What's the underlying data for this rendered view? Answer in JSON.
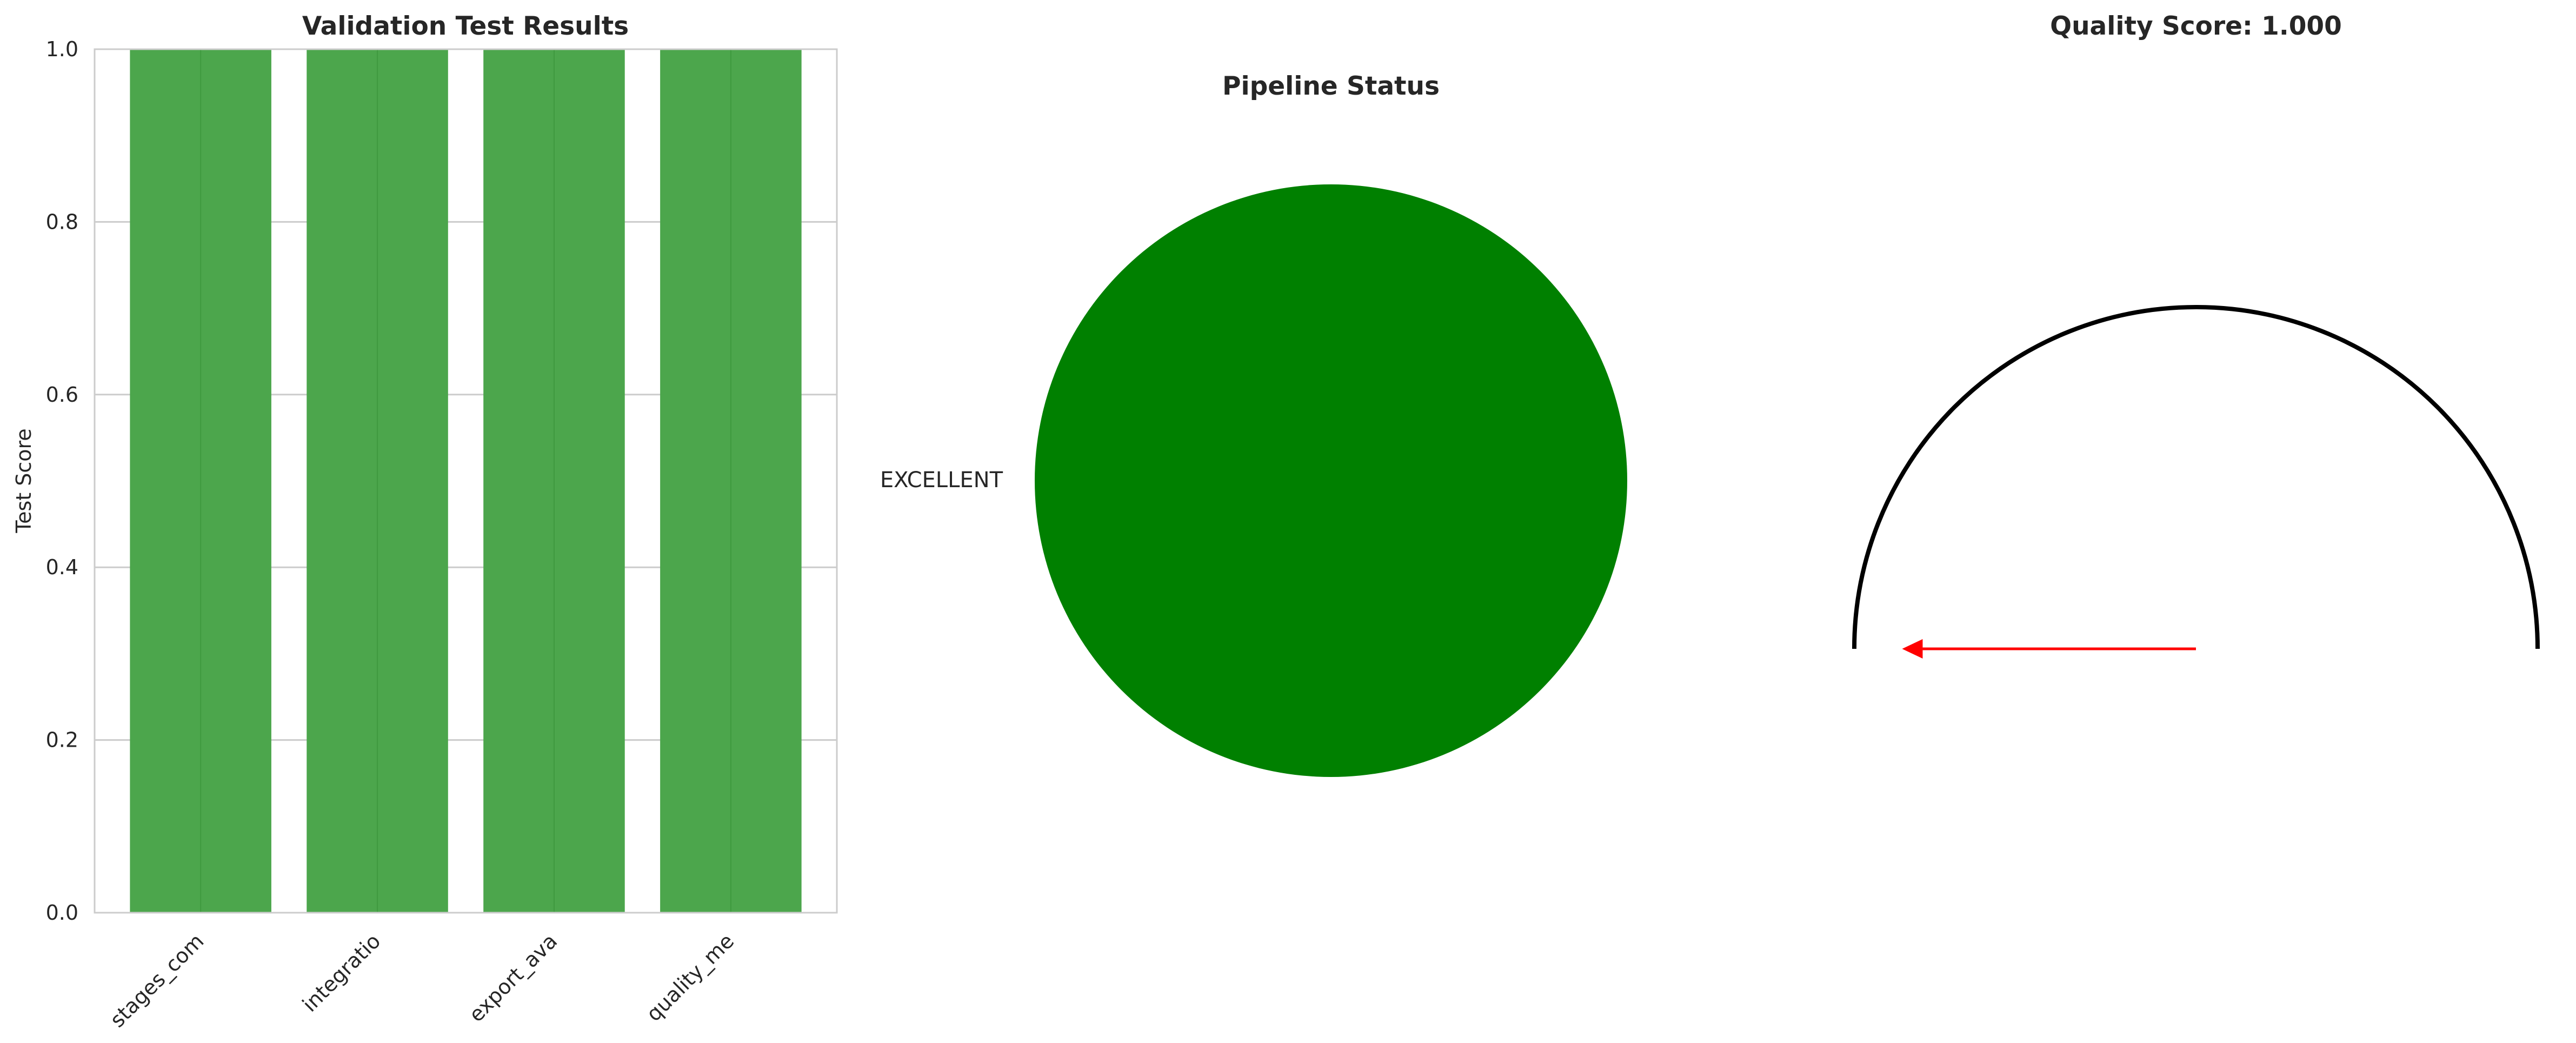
{
  "chart_data": [
    {
      "type": "bar",
      "title": "Validation Test Results",
      "xlabel": "",
      "ylabel": "Test Score",
      "categories": [
        "stages_com",
        "integratio",
        "export_ava",
        "quality_me"
      ],
      "values": [
        1.0,
        1.0,
        1.0,
        1.0
      ],
      "ylim": [
        0,
        1.0
      ],
      "yticks": [
        "0.0",
        "0.2",
        "0.4",
        "0.6",
        "0.8",
        "1.0"
      ],
      "grid": true,
      "bar_color": "#4ca64c"
    },
    {
      "type": "pie",
      "title": "Pipeline Status",
      "labels": [
        "EXCELLENT"
      ],
      "values": [
        1
      ],
      "colors": [
        "#008000"
      ]
    },
    {
      "type": "gauge",
      "title": "Quality Score: 1.000",
      "value": 1.0,
      "range": [
        0,
        1
      ],
      "needle_color": "#ff0000",
      "arc_color": "#000000"
    }
  ]
}
